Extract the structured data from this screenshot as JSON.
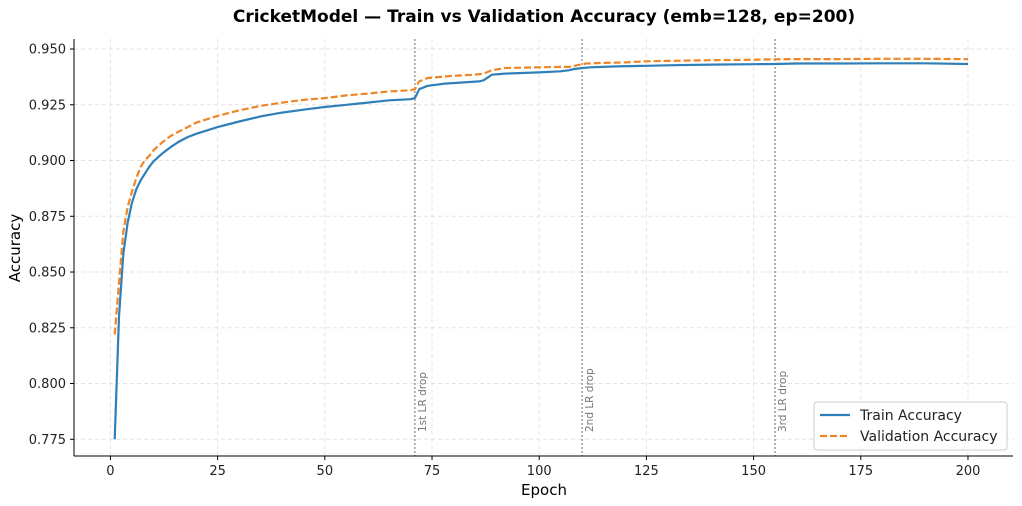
{
  "chart_data": {
    "type": "line",
    "title": "CricketModel — Train vs Validation Accuracy (emb=128, ep=200)",
    "xlabel": "Epoch",
    "ylabel": "Accuracy",
    "xlim": [
      -8.5,
      210.5
    ],
    "ylim": [
      0.7675,
      0.9545
    ],
    "xticks": [
      0,
      25,
      50,
      75,
      100,
      125,
      150,
      175,
      200
    ],
    "yticks": [
      0.775,
      0.8,
      0.825,
      0.85,
      0.875,
      0.9,
      0.925,
      0.95
    ],
    "xtick_labels": [
      "0",
      "25",
      "50",
      "75",
      "100",
      "125",
      "150",
      "175",
      "200"
    ],
    "ytick_labels": [
      "0.775",
      "0.800",
      "0.825",
      "0.850",
      "0.875",
      "0.900",
      "0.925",
      "0.950"
    ],
    "grid": true,
    "legend_position": "bottom-right",
    "series": [
      {
        "name": "Train Accuracy",
        "color": "#2f7fb9",
        "style": "solid",
        "points": [
          [
            1,
            0.775
          ],
          [
            2,
            0.83
          ],
          [
            3,
            0.858
          ],
          [
            4,
            0.872
          ],
          [
            5,
            0.881
          ],
          [
            6,
            0.887
          ],
          [
            7,
            0.891
          ],
          [
            8,
            0.894
          ],
          [
            9,
            0.897
          ],
          [
            10,
            0.8995
          ],
          [
            12,
            0.903
          ],
          [
            14,
            0.906
          ],
          [
            16,
            0.9085
          ],
          [
            18,
            0.9105
          ],
          [
            20,
            0.912
          ],
          [
            25,
            0.915
          ],
          [
            30,
            0.9175
          ],
          [
            35,
            0.9198
          ],
          [
            40,
            0.9215
          ],
          [
            45,
            0.9228
          ],
          [
            50,
            0.924
          ],
          [
            55,
            0.925
          ],
          [
            60,
            0.926
          ],
          [
            65,
            0.927
          ],
          [
            70,
            0.9275
          ],
          [
            71,
            0.928
          ],
          [
            72,
            0.932
          ],
          [
            74,
            0.9335
          ],
          [
            78,
            0.9345
          ],
          [
            82,
            0.935
          ],
          [
            86,
            0.9355
          ],
          [
            87,
            0.936
          ],
          [
            89,
            0.9385
          ],
          [
            92,
            0.939
          ],
          [
            100,
            0.9395
          ],
          [
            105,
            0.94
          ],
          [
            107,
            0.9405
          ],
          [
            108,
            0.941
          ],
          [
            110,
            0.9415
          ],
          [
            112,
            0.9418
          ],
          [
            118,
            0.9422
          ],
          [
            125,
            0.9425
          ],
          [
            130,
            0.9427
          ],
          [
            140,
            0.943
          ],
          [
            150,
            0.9432
          ],
          [
            155,
            0.9433
          ],
          [
            160,
            0.9435
          ],
          [
            170,
            0.9435
          ],
          [
            180,
            0.9436
          ],
          [
            190,
            0.9436
          ],
          [
            200,
            0.9433
          ]
        ]
      },
      {
        "name": "Validation Accuracy",
        "color": "#f08526",
        "style": "dashed",
        "points": [
          [
            1,
            0.822
          ],
          [
            2,
            0.845
          ],
          [
            3,
            0.868
          ],
          [
            4,
            0.879
          ],
          [
            5,
            0.886
          ],
          [
            6,
            0.892
          ],
          [
            7,
            0.897
          ],
          [
            8,
            0.9
          ],
          [
            9,
            0.902
          ],
          [
            10,
            0.9045
          ],
          [
            12,
            0.908
          ],
          [
            14,
            0.911
          ],
          [
            16,
            0.913
          ],
          [
            18,
            0.915
          ],
          [
            20,
            0.917
          ],
          [
            25,
            0.92
          ],
          [
            30,
            0.9225
          ],
          [
            35,
            0.9245
          ],
          [
            40,
            0.926
          ],
          [
            45,
            0.9272
          ],
          [
            50,
            0.928
          ],
          [
            55,
            0.9292
          ],
          [
            60,
            0.93
          ],
          [
            65,
            0.931
          ],
          [
            70,
            0.9315
          ],
          [
            71,
            0.932
          ],
          [
            72,
            0.9355
          ],
          [
            74,
            0.937
          ],
          [
            80,
            0.938
          ],
          [
            85,
            0.9385
          ],
          [
            87,
            0.939
          ],
          [
            89,
            0.9405
          ],
          [
            92,
            0.9415
          ],
          [
            100,
            0.9418
          ],
          [
            105,
            0.942
          ],
          [
            107,
            0.942
          ],
          [
            109,
            0.9428
          ],
          [
            111,
            0.9435
          ],
          [
            115,
            0.9438
          ],
          [
            120,
            0.944
          ],
          [
            125,
            0.9445
          ],
          [
            130,
            0.9447
          ],
          [
            140,
            0.945
          ],
          [
            150,
            0.9452
          ],
          [
            155,
            0.9454
          ],
          [
            160,
            0.9455
          ],
          [
            170,
            0.9455
          ],
          [
            180,
            0.9456
          ],
          [
            190,
            0.9456
          ],
          [
            200,
            0.9455
          ]
        ]
      }
    ],
    "annotations": [
      {
        "x": 71,
        "label": "1st LR drop"
      },
      {
        "x": 110,
        "label": "2nd LR drop"
      },
      {
        "x": 155,
        "label": "3rd LR drop"
      }
    ]
  }
}
